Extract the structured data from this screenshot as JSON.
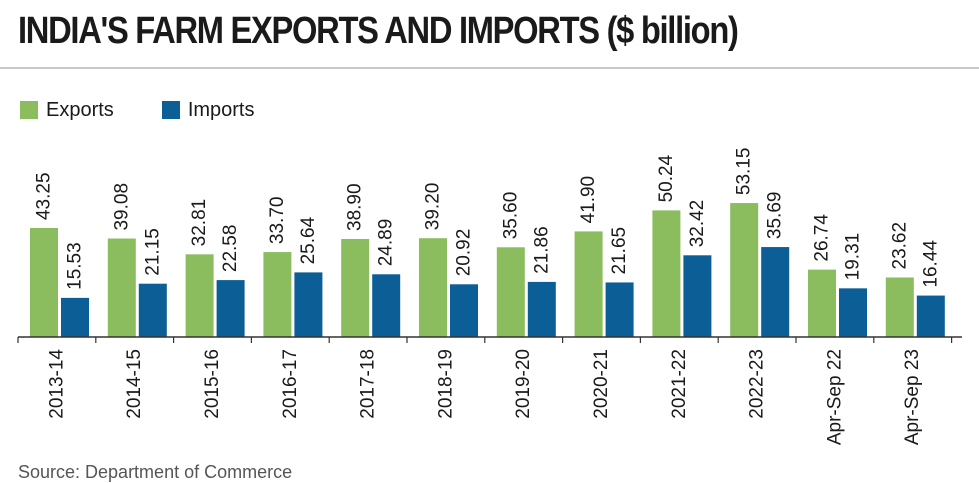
{
  "title": "INDIA'S FARM EXPORTS AND IMPORTS ($ billion)",
  "source": "Source: Department of Commerce",
  "colors": {
    "exports": "#8bbd5e",
    "imports": "#0c5f96",
    "axis": "#333333"
  },
  "chart_data": {
    "type": "bar",
    "title": "INDIA'S FARM EXPORTS AND IMPORTS ($ billion)",
    "xlabel": "",
    "ylabel": "",
    "ylim": [
      0,
      60
    ],
    "grid": false,
    "legend": "top-left",
    "categories": [
      "2013-14",
      "2014-15",
      "2015-16",
      "2016-17",
      "2017-18",
      "2018-19",
      "2019-20",
      "2020-21",
      "2021-22",
      "2022-23",
      "Apr-Sep 22",
      "Apr-Sep 23"
    ],
    "series": [
      {
        "name": "Exports",
        "values": [
          43.25,
          39.08,
          32.81,
          33.7,
          38.9,
          39.2,
          35.6,
          41.9,
          50.24,
          53.15,
          26.74,
          23.62
        ],
        "labels": [
          "43.25",
          "39.08",
          "32.81",
          "33.70",
          "38.90",
          "39.20",
          "35.60",
          "41.90",
          "50.24",
          "53.15",
          "26.74",
          "23.62"
        ]
      },
      {
        "name": "Imports",
        "values": [
          15.53,
          21.15,
          22.58,
          25.64,
          24.89,
          20.92,
          21.86,
          21.65,
          32.42,
          35.69,
          19.31,
          16.44
        ],
        "labels": [
          "15.53",
          "21.15",
          "22.58",
          "25.64",
          "24.89",
          "20.92",
          "21.86",
          "21.65",
          "32.42",
          "35.69",
          "19.31",
          "16.44"
        ]
      }
    ]
  }
}
